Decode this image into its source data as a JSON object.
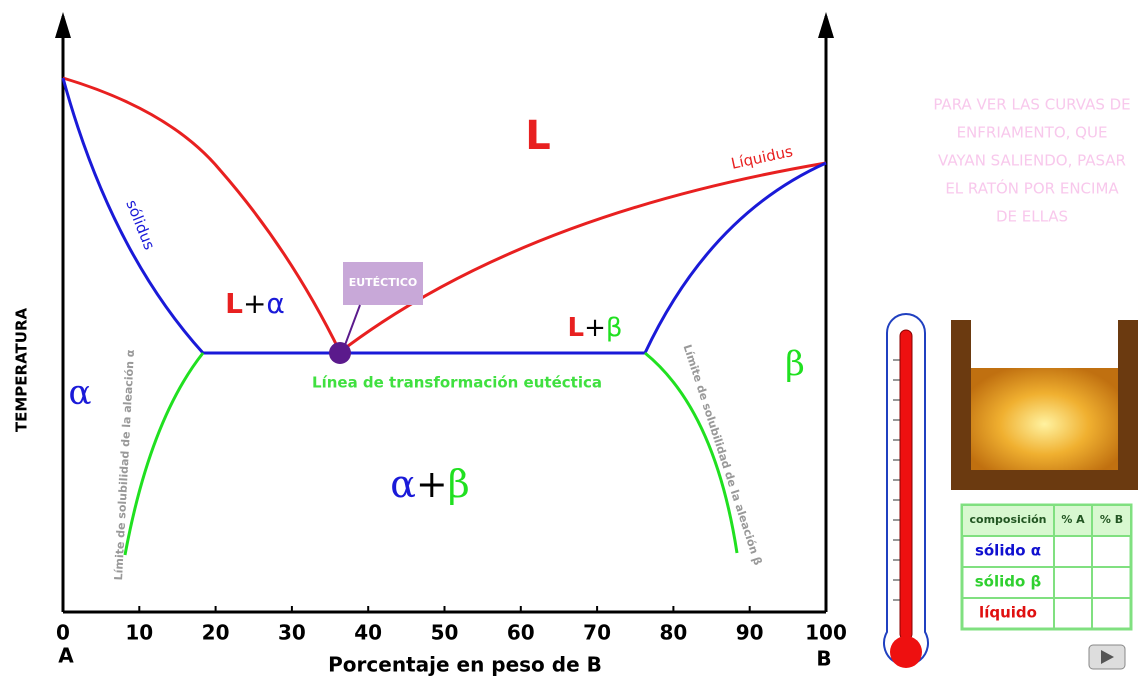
{
  "diagram": {
    "y_axis_label": "TEMPERATURA",
    "x_axis_label": "Porcentaje en peso de B",
    "x_ticks": [
      0,
      10,
      20,
      30,
      40,
      50,
      60,
      70,
      80,
      90,
      100
    ],
    "end_a": "A",
    "end_b": "B",
    "liquidus": "Líquidus",
    "solidus": "sólidus",
    "region_liquid": "L",
    "region_l_alpha": [
      "L",
      "+",
      "α"
    ],
    "region_l_beta": [
      "L",
      "+",
      "β"
    ],
    "region_alpha": "α",
    "region_beta": "β",
    "region_alpha_beta": [
      "α",
      "+",
      "β"
    ],
    "eutectic_line": "Línea de transformación eutéctica",
    "eutectic": "EUTÉCTICO",
    "solvus_alpha": "Límite de solubilidad de la aleación α",
    "solvus_beta": "Límite de solubilidad de la aleación β"
  },
  "instructions": [
    "PARA VER LAS CURVAS DE",
    "ENFRIAMENTO, QUE",
    "VAYAN SALIENDO, PASAR",
    "EL RATÓN POR ENCIMA",
    "DE ELLAS"
  ],
  "table": {
    "header": [
      "composición",
      "% A",
      "% B"
    ],
    "rows": [
      "sólido α",
      "sólido β",
      "líquido"
    ]
  }
}
